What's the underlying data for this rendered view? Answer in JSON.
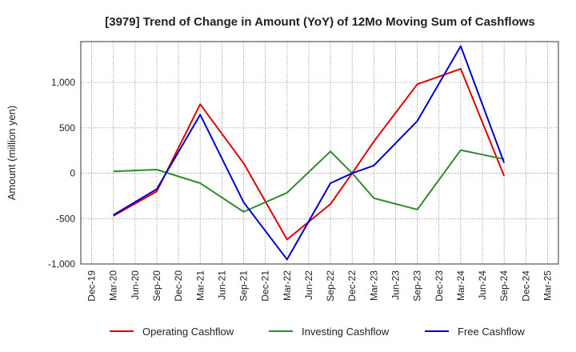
{
  "chart_data": {
    "type": "line",
    "title": "[3979]  Trend of Change in Amount (YoY) of 12Mo Moving Sum of Cashflows",
    "xlabel": "",
    "ylabel": "Amount (million yen)",
    "ylim": [
      -1000,
      1450
    ],
    "yticks": [
      -1000,
      -500,
      0,
      500,
      1000
    ],
    "ytick_labels": [
      "-1,000",
      "-500",
      "0",
      "500",
      "1,000"
    ],
    "categories": [
      "Dec-19",
      "Mar-20",
      "Jun-20",
      "Sep-20",
      "Dec-20",
      "Mar-21",
      "Jun-21",
      "Sep-21",
      "Dec-21",
      "Mar-22",
      "Jun-22",
      "Sep-22",
      "Dec-22",
      "Mar-23",
      "Jun-23",
      "Sep-23",
      "Dec-23",
      "Mar-24",
      "Jun-24",
      "Sep-24",
      "Dec-24",
      "Mar-25"
    ],
    "x_label_every": 1,
    "grid": true,
    "legend_position": "bottom",
    "series": [
      {
        "name": "Operating Cashflow",
        "color": "#e00000",
        "points": [
          [
            1,
            -470
          ],
          [
            3,
            -200
          ],
          [
            5,
            760
          ],
          [
            7,
            110
          ],
          [
            9,
            -730
          ],
          [
            11,
            -340
          ],
          [
            12,
            0
          ],
          [
            13,
            350
          ],
          [
            15,
            980
          ],
          [
            17,
            1150
          ],
          [
            19,
            -30
          ]
        ]
      },
      {
        "name": "Investing Cashflow",
        "color": "#2e8b2e",
        "points": [
          [
            1,
            20
          ],
          [
            3,
            40
          ],
          [
            5,
            -110
          ],
          [
            7,
            -425
          ],
          [
            9,
            -215
          ],
          [
            11,
            240
          ],
          [
            12,
            0
          ],
          [
            13,
            -275
          ],
          [
            15,
            -400
          ],
          [
            17,
            255
          ],
          [
            19,
            155
          ]
        ]
      },
      {
        "name": "Free Cashflow",
        "color": "#0000cc",
        "points": [
          [
            1,
            -460
          ],
          [
            3,
            -175
          ],
          [
            5,
            645
          ],
          [
            7,
            -320
          ],
          [
            9,
            -950
          ],
          [
            11,
            -110
          ],
          [
            12,
            0
          ],
          [
            13,
            85
          ],
          [
            15,
            575
          ],
          [
            17,
            1400
          ],
          [
            19,
            115
          ]
        ]
      }
    ]
  }
}
